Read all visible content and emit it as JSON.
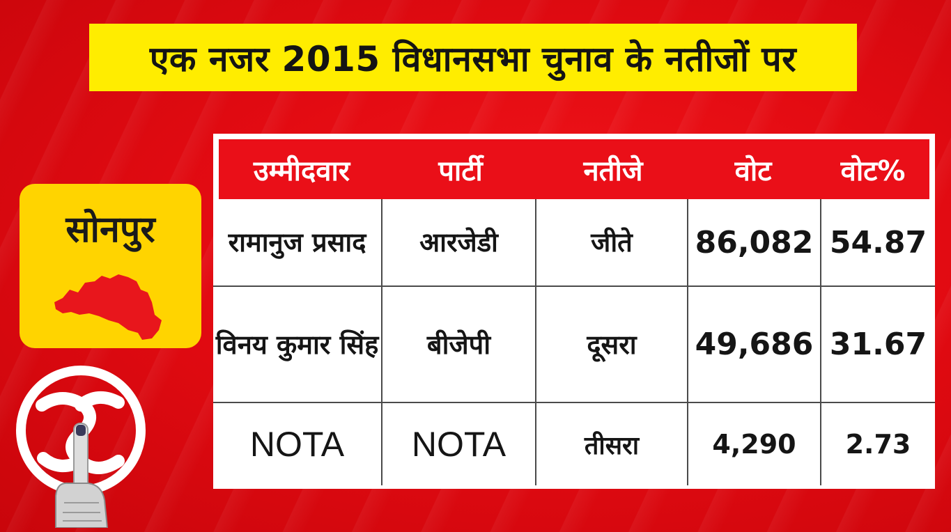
{
  "banner": {
    "title": "एक नजर 2015 विधानसभा चुनाव के नतीजों पर"
  },
  "constituency": {
    "name": "सोनपुर",
    "map_icon": "constituency-map-icon",
    "map_color": "#e8161c"
  },
  "table": {
    "headers": [
      "उम्मीदवार",
      "पार्टी",
      "नतीजे",
      "वोट",
      "वोट%"
    ],
    "rows": [
      {
        "candidate": "रामानुज प्रसाद",
        "party": "आरजेडी",
        "result": "जीते",
        "votes": "86,082",
        "vote_pct": "54.87"
      },
      {
        "candidate": "विनय कुमार सिंह",
        "party": "बीजेपी",
        "result": "दूसरा",
        "votes": "49,686",
        "vote_pct": "31.67"
      },
      {
        "candidate": "NOTA",
        "party": "NOTA",
        "result": "तीसरा",
        "votes": "4,290",
        "vote_pct": "2.73"
      }
    ]
  },
  "colors": {
    "background": "#e30b12",
    "banner": "#ffed00",
    "place_card": "#ffd400",
    "header_row": "#ea0f18"
  },
  "logo": {
    "icon": "election-commission-logo-icon"
  }
}
